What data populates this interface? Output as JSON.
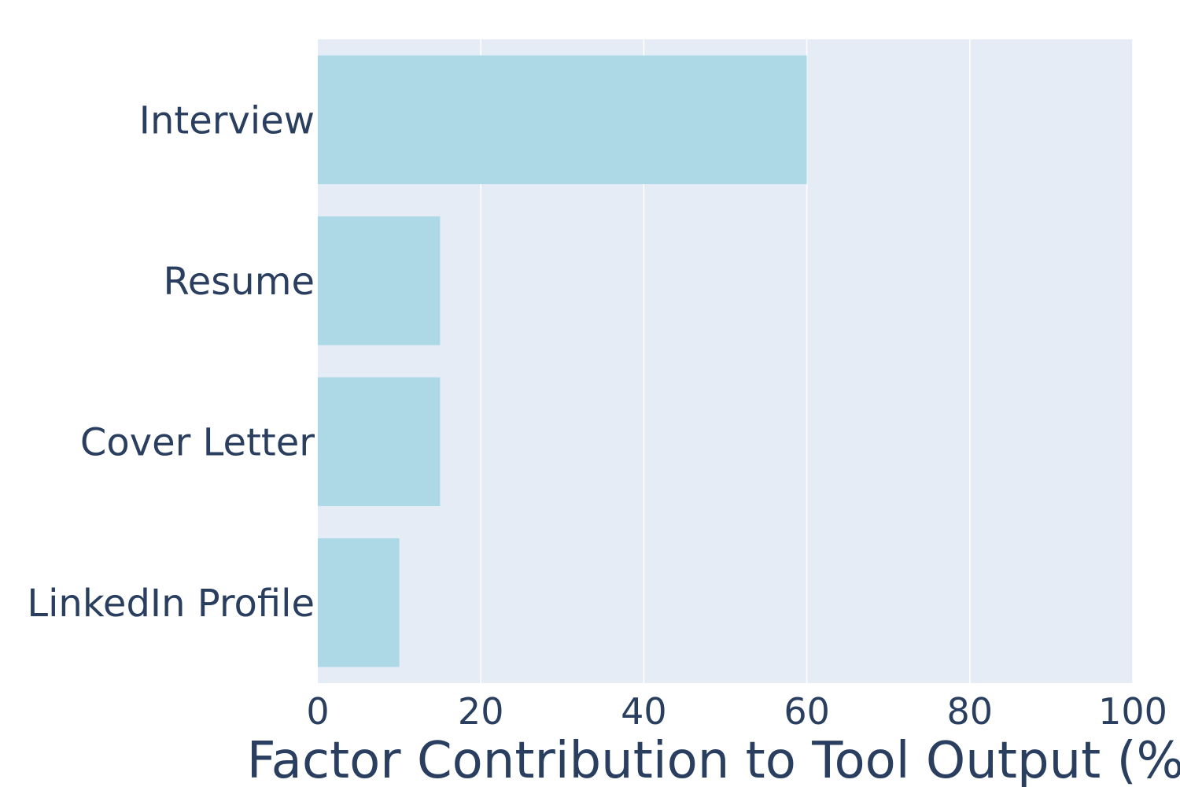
{
  "colors": {
    "plot_bg": "#e5ecf6",
    "bar": "#add8e6",
    "grid": "#ffffff",
    "text": "#2a3f5f"
  },
  "chart_data": {
    "type": "bar",
    "orientation": "horizontal",
    "categories": [
      "Interview",
      "Resume",
      "Cover Letter",
      "LinkedIn Profile"
    ],
    "values": [
      60,
      15,
      15,
      10
    ],
    "xlabel": "Factor Contribution to Tool Output (%)",
    "ylabel": "",
    "xlim": [
      0,
      100
    ],
    "xticks": [
      0,
      20,
      40,
      60,
      80,
      100
    ],
    "grid": true,
    "legend": "none"
  }
}
